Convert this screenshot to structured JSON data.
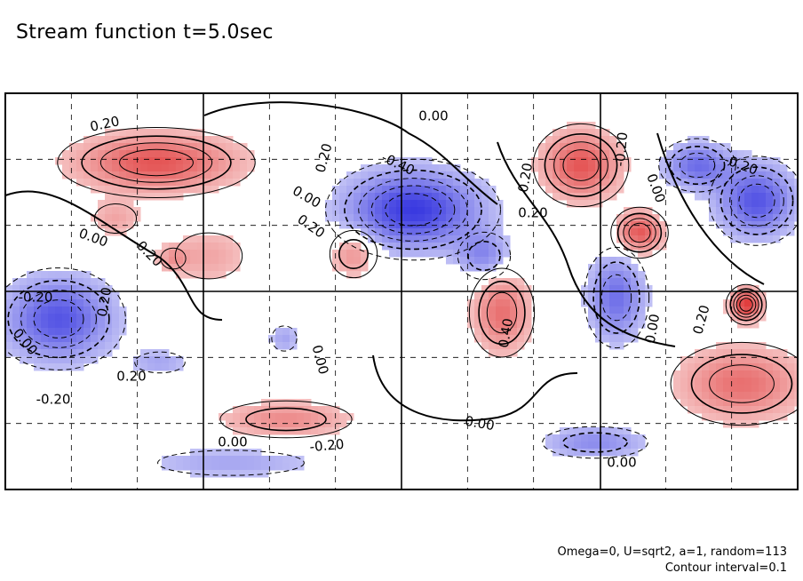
{
  "chart_data": {
    "type": "heatmap",
    "title": "Stream function t=5.0sec",
    "xlabel": "",
    "ylabel": "",
    "grid": "dashed",
    "contour_interval": 0.1,
    "colors": {
      "positive": "#e03a3a",
      "negative": "#3a3ae0",
      "background": "#ffffff",
      "line": "#000000"
    },
    "contour_labels": [
      "0.20",
      "0.00",
      "0.20",
      "0.20",
      "0.00",
      "-0.40",
      "0.20",
      "0.00",
      "0.20",
      "-0.20",
      "0.20",
      "0.00",
      "0.20",
      "0.00",
      "-0.20",
      "0.40",
      "0.00",
      "0.00",
      "-0.20",
      "0.00",
      "-0.20",
      "0.20",
      "0.00",
      "0.00",
      "0.20",
      "-0.20"
    ],
    "features": [
      {
        "kind": "max",
        "value": 0.5
      },
      {
        "kind": "max",
        "value": 0.5
      },
      {
        "kind": "max",
        "value": 0.5
      },
      {
        "kind": "max",
        "value": 0.4
      },
      {
        "kind": "max",
        "value": 0.3
      },
      {
        "kind": "max",
        "value": 0.4
      },
      {
        "kind": "max",
        "value": 0.3
      },
      {
        "kind": "max",
        "value": 0.6
      },
      {
        "kind": "max",
        "value": 0.2
      },
      {
        "kind": "max",
        "value": 0.2
      },
      {
        "kind": "max",
        "value": 0.2
      },
      {
        "kind": "min",
        "value": -0.6
      },
      {
        "kind": "min",
        "value": -0.5
      },
      {
        "kind": "min",
        "value": -0.5
      },
      {
        "kind": "min",
        "value": -0.4
      },
      {
        "kind": "min",
        "value": -0.3
      },
      {
        "kind": "min",
        "value": -0.3
      },
      {
        "kind": "min",
        "value": -0.4
      },
      {
        "kind": "min",
        "value": -0.2
      },
      {
        "kind": "min",
        "value": -0.2
      },
      {
        "kind": "min",
        "value": -0.2
      }
    ]
  },
  "footnote": {
    "line1": "Omega=0, U=sqrt2, a=1, random=113",
    "line2": "Contour interval=0.1"
  }
}
